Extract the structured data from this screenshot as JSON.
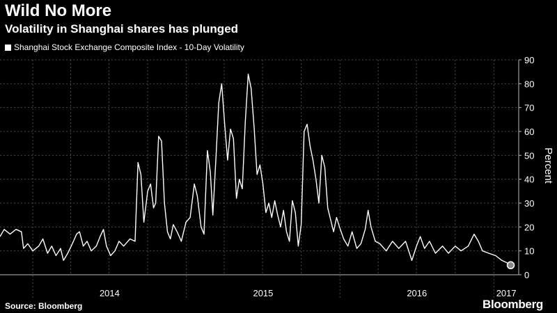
{
  "header": {
    "title": "Wild No More",
    "subtitle": "Volatility in Shanghai shares has plunged"
  },
  "footer": {
    "source": "Source: Bloomberg",
    "brand": "Bloomberg"
  },
  "colors": {
    "background": "#000000",
    "line": "#ffffff",
    "grid": "#4a4a4a"
  },
  "chart_data": {
    "type": "line",
    "ylabel": "Percent",
    "ylim": [
      0,
      90
    ],
    "yticks": [
      0,
      10,
      20,
      30,
      40,
      50,
      60,
      70,
      80,
      90
    ],
    "x_labels": [
      "2014",
      "2015",
      "2016",
      "2017"
    ],
    "xlim": [
      "2013-10-15",
      "2017-03-01"
    ],
    "grid": true,
    "legend_position": "top-left",
    "series": [
      {
        "name": "Shanghai Stock Exchange Composite Index - 10-Day Volatility",
        "points": [
          [
            "2013-10-15",
            16
          ],
          [
            "2013-10-25",
            19
          ],
          [
            "2013-11-08",
            17
          ],
          [
            "2013-11-22",
            19
          ],
          [
            "2013-12-05",
            18
          ],
          [
            "2013-12-10",
            11
          ],
          [
            "2013-12-20",
            13
          ],
          [
            "2014-01-01",
            10
          ],
          [
            "2014-01-15",
            12
          ],
          [
            "2014-01-25",
            15
          ],
          [
            "2014-02-05",
            9
          ],
          [
            "2014-02-15",
            12
          ],
          [
            "2014-02-25",
            8
          ],
          [
            "2014-03-08",
            11
          ],
          [
            "2014-03-15",
            6
          ],
          [
            "2014-03-25",
            9
          ],
          [
            "2014-04-05",
            13
          ],
          [
            "2014-04-15",
            17
          ],
          [
            "2014-04-22",
            18
          ],
          [
            "2014-05-01",
            12
          ],
          [
            "2014-05-10",
            14
          ],
          [
            "2014-05-20",
            10
          ],
          [
            "2014-06-01",
            12
          ],
          [
            "2014-06-10",
            16
          ],
          [
            "2014-06-18",
            19
          ],
          [
            "2014-06-25",
            12
          ],
          [
            "2014-07-05",
            8
          ],
          [
            "2014-07-15",
            10
          ],
          [
            "2014-07-25",
            14
          ],
          [
            "2014-08-05",
            12
          ],
          [
            "2014-08-20",
            15
          ],
          [
            "2014-09-01",
            14
          ],
          [
            "2014-09-08",
            47
          ],
          [
            "2014-09-15",
            42
          ],
          [
            "2014-09-22",
            22
          ],
          [
            "2014-10-01",
            35
          ],
          [
            "2014-10-08",
            38
          ],
          [
            "2014-10-15",
            28
          ],
          [
            "2014-10-20",
            30
          ],
          [
            "2014-10-27",
            58
          ],
          [
            "2014-11-03",
            56
          ],
          [
            "2014-11-10",
            30
          ],
          [
            "2014-11-17",
            18
          ],
          [
            "2014-11-24",
            15
          ],
          [
            "2014-12-01",
            21
          ],
          [
            "2014-12-10",
            18
          ],
          [
            "2014-12-20",
            14
          ],
          [
            "2014-12-31",
            22
          ],
          [
            "2015-01-10",
            24
          ],
          [
            "2015-01-20",
            38
          ],
          [
            "2015-01-27",
            33
          ],
          [
            "2015-02-05",
            20
          ],
          [
            "2015-02-12",
            17
          ],
          [
            "2015-02-20",
            52
          ],
          [
            "2015-02-27",
            43
          ],
          [
            "2015-03-05",
            25
          ],
          [
            "2015-03-12",
            48
          ],
          [
            "2015-03-19",
            72
          ],
          [
            "2015-03-26",
            80
          ],
          [
            "2015-04-02",
            63
          ],
          [
            "2015-04-09",
            48
          ],
          [
            "2015-04-16",
            61
          ],
          [
            "2015-04-23",
            57
          ],
          [
            "2015-04-30",
            32
          ],
          [
            "2015-05-07",
            40
          ],
          [
            "2015-05-14",
            36
          ],
          [
            "2015-05-21",
            64
          ],
          [
            "2015-05-28",
            84
          ],
          [
            "2015-06-04",
            78
          ],
          [
            "2015-06-11",
            62
          ],
          [
            "2015-06-18",
            42
          ],
          [
            "2015-06-25",
            46
          ],
          [
            "2015-07-02",
            38
          ],
          [
            "2015-07-09",
            26
          ],
          [
            "2015-07-16",
            30
          ],
          [
            "2015-07-23",
            24
          ],
          [
            "2015-07-30",
            31
          ],
          [
            "2015-08-06",
            25
          ],
          [
            "2015-08-13",
            20
          ],
          [
            "2015-08-20",
            27
          ],
          [
            "2015-08-27",
            18
          ],
          [
            "2015-09-03",
            14
          ],
          [
            "2015-09-10",
            31
          ],
          [
            "2015-09-17",
            26
          ],
          [
            "2015-09-24",
            12
          ],
          [
            "2015-10-01",
            21
          ],
          [
            "2015-10-08",
            60
          ],
          [
            "2015-10-15",
            63
          ],
          [
            "2015-10-22",
            54
          ],
          [
            "2015-10-29",
            48
          ],
          [
            "2015-11-05",
            40
          ],
          [
            "2015-11-12",
            30
          ],
          [
            "2015-11-19",
            50
          ],
          [
            "2015-11-26",
            45
          ],
          [
            "2015-12-03",
            28
          ],
          [
            "2015-12-10",
            23
          ],
          [
            "2015-12-17",
            18
          ],
          [
            "2015-12-24",
            24
          ],
          [
            "2015-12-31",
            20
          ],
          [
            "2016-01-10",
            15
          ],
          [
            "2016-01-20",
            12
          ],
          [
            "2016-01-30",
            18
          ],
          [
            "2016-02-10",
            11
          ],
          [
            "2016-02-20",
            13
          ],
          [
            "2016-03-01",
            19
          ],
          [
            "2016-03-08",
            27
          ],
          [
            "2016-03-15",
            20
          ],
          [
            "2016-03-25",
            14
          ],
          [
            "2016-04-05",
            13
          ],
          [
            "2016-04-20",
            10
          ],
          [
            "2016-05-05",
            14
          ],
          [
            "2016-05-20",
            11
          ],
          [
            "2016-06-05",
            14
          ],
          [
            "2016-06-20",
            6
          ],
          [
            "2016-07-01",
            12
          ],
          [
            "2016-07-10",
            16
          ],
          [
            "2016-07-20",
            11
          ],
          [
            "2016-08-01",
            14
          ],
          [
            "2016-08-15",
            9
          ],
          [
            "2016-09-01",
            12
          ],
          [
            "2016-09-15",
            9
          ],
          [
            "2016-10-01",
            12
          ],
          [
            "2016-10-15",
            10
          ],
          [
            "2016-11-01",
            12
          ],
          [
            "2016-11-15",
            17
          ],
          [
            "2016-11-25",
            14
          ],
          [
            "2016-12-05",
            10
          ],
          [
            "2016-12-20",
            9
          ],
          [
            "2017-01-05",
            8
          ],
          [
            "2017-01-20",
            6
          ],
          [
            "2017-02-01",
            5
          ],
          [
            "2017-02-10",
            4
          ]
        ]
      }
    ],
    "end_marker": [
      "2017-02-10",
      4
    ]
  }
}
